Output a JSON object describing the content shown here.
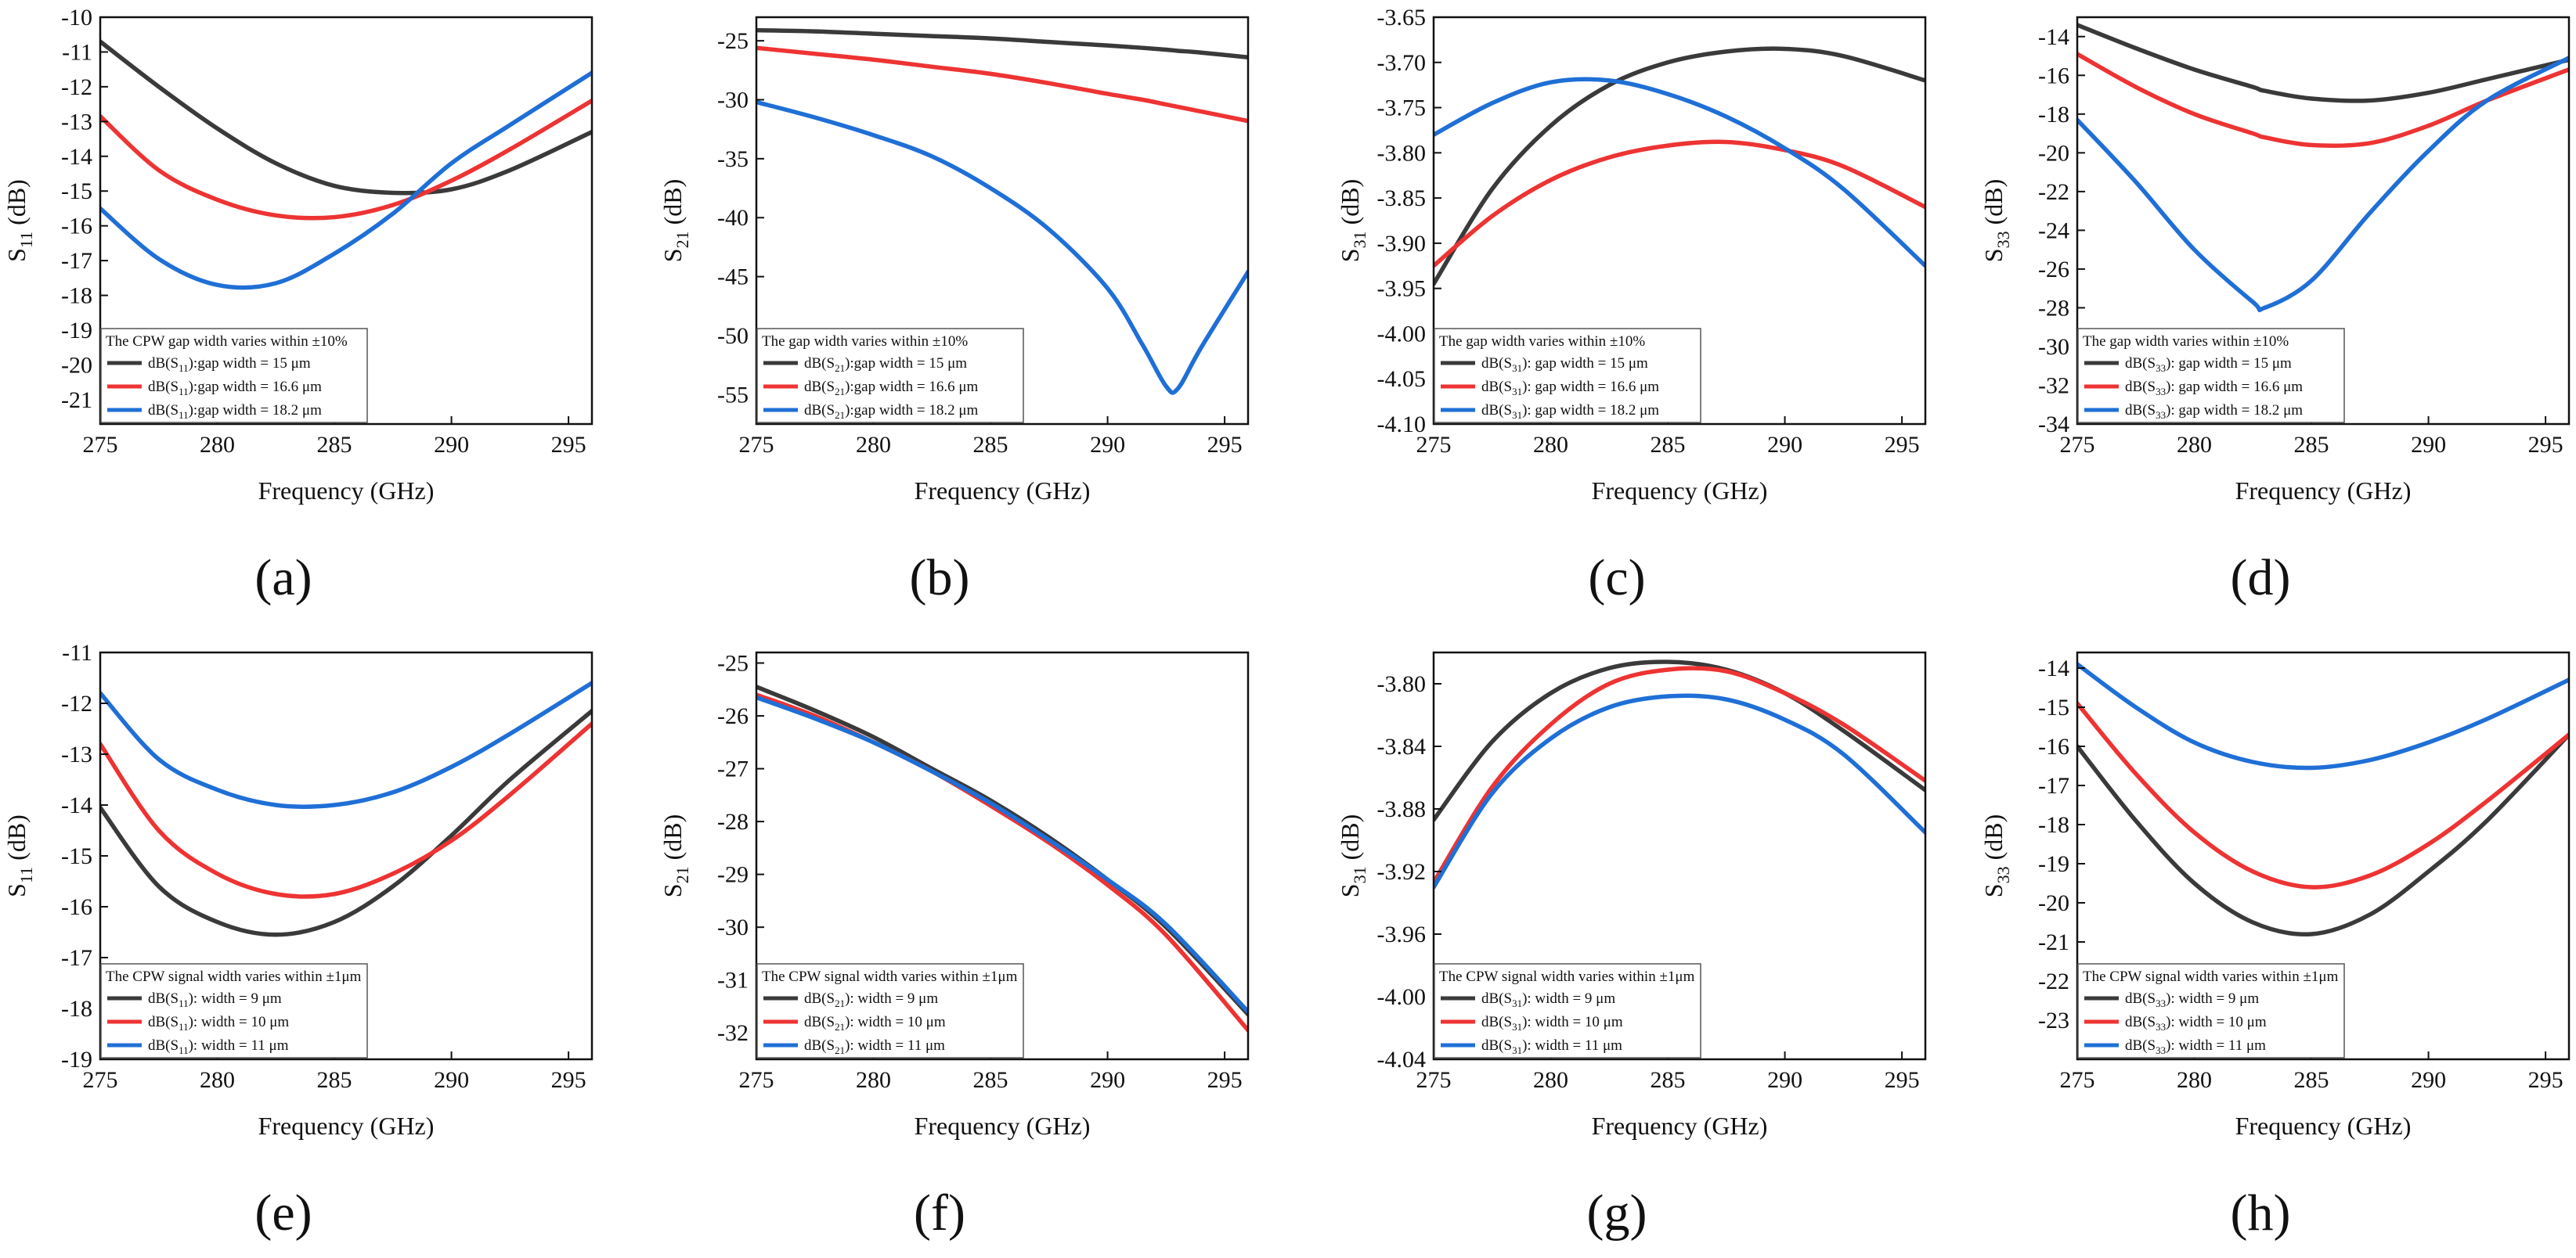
{
  "colors": {
    "black": "#3a3a3a",
    "red": "#ee3333",
    "blue": "#1f6fd6"
  },
  "chart_data": [
    {
      "id": "a",
      "type": "line",
      "panel_label": "(a)",
      "xlabel": "Frequency (GHz)",
      "ylabel_base": "S",
      "ylabel_sub": "11",
      "ylabel_unit": " (dB)",
      "xlim": [
        275,
        296
      ],
      "ylim": [
        -21.7,
        -10
      ],
      "xticks": [
        275,
        280,
        285,
        290,
        295
      ],
      "xtick_labels": [
        "275",
        "280",
        "285",
        "290",
        "295"
      ],
      "yticks": [
        -10,
        -11,
        -12,
        -13,
        -14,
        -15,
        -16,
        -17,
        -18,
        -19,
        -20,
        -21
      ],
      "ytick_labels": [
        "-10",
        "-11",
        "-12",
        "-13",
        "-14",
        "-15",
        "-16",
        "-17",
        "-18",
        "-19",
        "-20",
        "-21"
      ],
      "x": [
        275,
        277.5,
        280,
        282.5,
        285,
        287.5,
        290,
        292.5,
        296
      ],
      "legend_title": "The CPW gap width varies within ±10%",
      "series": [
        {
          "name": "dB(S11):gap width = 15 μm",
          "color": "black",
          "values": [
            -10.7,
            -12.0,
            -13.2,
            -14.2,
            -14.85,
            -15.05,
            -14.95,
            -14.4,
            -13.3
          ]
        },
        {
          "name": "dB(S11):gap width = 16.6 μm",
          "color": "red",
          "values": [
            -12.85,
            -14.4,
            -15.25,
            -15.7,
            -15.75,
            -15.4,
            -14.7,
            -13.8,
            -12.4
          ]
        },
        {
          "name": "dB(S11):gap width = 18.2 μm",
          "color": "blue",
          "values": [
            -15.5,
            -16.95,
            -17.7,
            -17.65,
            -16.8,
            -15.65,
            -14.2,
            -13.1,
            -11.6
          ]
        }
      ],
      "legend_entries": [
        {
          "pre": "dB(S",
          "sub": "11",
          "post": "):gap width = 15 μm"
        },
        {
          "pre": "dB(S",
          "sub": "11",
          "post": "):gap width = 16.6 μm"
        },
        {
          "pre": "dB(S",
          "sub": "11",
          "post": "):gap width = 18.2 μm"
        }
      ]
    },
    {
      "id": "b",
      "type": "line",
      "panel_label": "(b)",
      "xlabel": "Frequency (GHz)",
      "ylabel_base": "S",
      "ylabel_sub": "21",
      "ylabel_unit": " (dB)",
      "xlim": [
        275,
        296
      ],
      "ylim": [
        -57.5,
        -23
      ],
      "xticks": [
        275,
        280,
        285,
        290,
        295
      ],
      "xtick_labels": [
        "275",
        "280",
        "285",
        "290",
        "295"
      ],
      "yticks": [
        -25,
        -30,
        -35,
        -40,
        -45,
        -50,
        -55
      ],
      "ytick_labels": [
        "-25",
        "-30",
        "-35",
        "-40",
        "-45",
        "-50",
        "-55"
      ],
      "x": [
        275,
        277.5,
        280,
        282.5,
        285,
        287.5,
        290,
        291.5,
        292.5,
        293,
        294,
        296
      ],
      "legend_title": "The gap width varies within ±10%",
      "series": [
        {
          "name": "dB(S21):gap width = 15 μm",
          "color": "black",
          "values": [
            -24.1,
            -24.2,
            -24.4,
            -24.6,
            -24.8,
            -25.1,
            -25.4,
            -25.6,
            -25.75,
            -25.85,
            -26.0,
            -26.4
          ]
        },
        {
          "name": "dB(S21):gap width = 16.6 μm",
          "color": "red",
          "values": [
            -25.6,
            -26.1,
            -26.6,
            -27.2,
            -27.8,
            -28.6,
            -29.5,
            -30.0,
            -30.4,
            -30.6,
            -31.0,
            -31.8
          ]
        },
        {
          "name": "dB(S21):gap width = 18.2 μm",
          "color": "blue",
          "values": [
            -30.2,
            -31.5,
            -33.0,
            -34.8,
            -37.5,
            -41.0,
            -46.0,
            -50.8,
            -54.3,
            -54.5,
            -51.0,
            -44.6
          ]
        }
      ],
      "legend_entries": [
        {
          "pre": "dB(S",
          "sub": "21",
          "post": "):gap width = 15 μm"
        },
        {
          "pre": "dB(S",
          "sub": "21",
          "post": "):gap width = 16.6 μm"
        },
        {
          "pre": "dB(S",
          "sub": "21",
          "post": "):gap width = 18.2 μm"
        }
      ]
    },
    {
      "id": "c",
      "type": "line",
      "panel_label": "(c)",
      "xlabel": "Frequency (GHz)",
      "ylabel_base": "S",
      "ylabel_sub": "31",
      "ylabel_unit": " (dB)",
      "xlim": [
        275,
        296
      ],
      "ylim": [
        -4.1,
        -3.65
      ],
      "xticks": [
        275,
        280,
        285,
        290,
        295
      ],
      "xtick_labels": [
        "275",
        "280",
        "285",
        "290",
        "295"
      ],
      "yticks": [
        -3.65,
        -3.7,
        -3.75,
        -3.8,
        -3.85,
        -3.9,
        -3.95,
        -4.0,
        -4.05,
        -4.1
      ],
      "ytick_labels": [
        "-3.65",
        "-3.70",
        "-3.75",
        "-3.80",
        "-3.85",
        "-3.90",
        "-3.95",
        "-4.00",
        "-4.05",
        "-4.10"
      ],
      "x": [
        275,
        277.5,
        280,
        282.5,
        285,
        287.5,
        290,
        292.5,
        296
      ],
      "legend_title": "The gap width varies within ±10%",
      "series": [
        {
          "name": "dB(S31): gap width = 15 μm",
          "color": "black",
          "values": [
            -3.945,
            -3.84,
            -3.77,
            -3.725,
            -3.7,
            -3.688,
            -3.685,
            -3.693,
            -3.72
          ]
        },
        {
          "name": "dB(S31): gap width = 16.6 μm",
          "color": "red",
          "values": [
            -3.925,
            -3.87,
            -3.83,
            -3.805,
            -3.792,
            -3.788,
            -3.797,
            -3.815,
            -3.86
          ]
        },
        {
          "name": "dB(S31): gap width = 18.2 μm",
          "color": "blue",
          "values": [
            -3.78,
            -3.745,
            -3.722,
            -3.72,
            -3.735,
            -3.76,
            -3.795,
            -3.84,
            -3.925
          ]
        }
      ],
      "legend_entries": [
        {
          "pre": "dB(S",
          "sub": "31",
          "post": "): gap width = 15 μm"
        },
        {
          "pre": "dB(S",
          "sub": "31",
          "post": "): gap width = 16.6 μm"
        },
        {
          "pre": "dB(S",
          "sub": "31",
          "post": "): gap width = 18.2 μm"
        }
      ]
    },
    {
      "id": "d",
      "type": "line",
      "panel_label": "(d)",
      "xlabel": "Frequency (GHz)",
      "ylabel_base": "S",
      "ylabel_sub": "33",
      "ylabel_unit": " (dB)",
      "xlim": [
        275,
        296
      ],
      "ylim": [
        -34,
        -13
      ],
      "xticks": [
        275,
        280,
        285,
        290,
        295
      ],
      "xtick_labels": [
        "275",
        "280",
        "285",
        "290",
        "295"
      ],
      "yticks": [
        -14,
        -16,
        -18,
        -20,
        -22,
        -24,
        -26,
        -28,
        -30,
        -32,
        -34
      ],
      "ytick_labels": [
        "-14",
        "-16",
        "-18",
        "-20",
        "-22",
        "-24",
        "-26",
        "-28",
        "-30",
        "-32",
        "-34"
      ],
      "x": [
        275,
        277.5,
        280,
        282.5,
        283,
        285,
        287.5,
        290,
        292.5,
        296
      ],
      "legend_title": "The gap width varies within ±10%",
      "series": [
        {
          "name": "dB(S33): gap width = 15 μm",
          "color": "black",
          "values": [
            -13.4,
            -14.6,
            -15.7,
            -16.6,
            -16.8,
            -17.2,
            -17.3,
            -16.9,
            -16.2,
            -15.2
          ]
        },
        {
          "name": "dB(S33): gap width = 16.6 μm",
          "color": "red",
          "values": [
            -14.9,
            -16.6,
            -18.0,
            -19.0,
            -19.2,
            -19.6,
            -19.5,
            -18.6,
            -17.3,
            -15.7
          ]
        },
        {
          "name": "dB(S33): gap width = 18.2 μm",
          "color": "blue",
          "values": [
            -18.3,
            -21.5,
            -25.0,
            -27.7,
            -28.0,
            -26.6,
            -23.1,
            -19.9,
            -17.3,
            -15.1
          ]
        }
      ],
      "legend_entries": [
        {
          "pre": "dB(S",
          "sub": "33",
          "post": "): gap width = 15 μm"
        },
        {
          "pre": "dB(S",
          "sub": "33",
          "post": "): gap width = 16.6 μm"
        },
        {
          "pre": "dB(S",
          "sub": "33",
          "post": "): gap width = 18.2 μm"
        }
      ]
    },
    {
      "id": "e",
      "type": "line",
      "panel_label": "(e)",
      "xlabel": "Frequency (GHz)",
      "ylabel_base": "S",
      "ylabel_sub": "11",
      "ylabel_unit": " (dB)",
      "xlim": [
        275,
        296
      ],
      "ylim": [
        -19,
        -11
      ],
      "xticks": [
        275,
        280,
        285,
        290,
        295
      ],
      "xtick_labels": [
        "275",
        "280",
        "285",
        "290",
        "295"
      ],
      "yticks": [
        -11,
        -12,
        -13,
        -14,
        -15,
        -16,
        -17,
        -18,
        -19
      ],
      "ytick_labels": [
        "-11",
        "-12",
        "-13",
        "-14",
        "-15",
        "-16",
        "-17",
        "-18",
        "-19"
      ],
      "x": [
        275,
        277.5,
        280,
        282.5,
        285,
        287.5,
        290,
        292.5,
        296
      ],
      "legend_title": "The CPW signal width varies within ±1μm",
      "series": [
        {
          "name": "dB(S11): width = 9 μm",
          "color": "black",
          "values": [
            -14.05,
            -15.6,
            -16.3,
            -16.55,
            -16.3,
            -15.6,
            -14.6,
            -13.5,
            -12.15
          ]
        },
        {
          "name": "dB(S11): width = 10 μm",
          "color": "red",
          "values": [
            -12.8,
            -14.5,
            -15.35,
            -15.75,
            -15.75,
            -15.35,
            -14.7,
            -13.8,
            -12.4
          ]
        },
        {
          "name": "dB(S11): width = 11 μm",
          "color": "blue",
          "values": [
            -11.8,
            -13.1,
            -13.7,
            -14.0,
            -14.0,
            -13.75,
            -13.25,
            -12.6,
            -11.6
          ]
        }
      ],
      "legend_entries": [
        {
          "pre": "dB(S",
          "sub": "11",
          "post": "): width = 9 μm"
        },
        {
          "pre": "dB(S",
          "sub": "11",
          "post": "): width = 10 μm"
        },
        {
          "pre": "dB(S",
          "sub": "11",
          "post": "): width = 11 μm"
        }
      ]
    },
    {
      "id": "f",
      "type": "line",
      "panel_label": "(f)",
      "xlabel": "Frequency (GHz)",
      "ylabel_base": "S",
      "ylabel_sub": "21",
      "ylabel_unit": " (dB)",
      "xlim": [
        275,
        296
      ],
      "ylim": [
        -32.5,
        -24.8
      ],
      "xticks": [
        275,
        280,
        285,
        290,
        295
      ],
      "xtick_labels": [
        "275",
        "280",
        "285",
        "290",
        "295"
      ],
      "yticks": [
        -25,
        -26,
        -27,
        -28,
        -29,
        -30,
        -31,
        -32
      ],
      "ytick_labels": [
        "-25",
        "-26",
        "-27",
        "-28",
        "-29",
        "-30",
        "-31",
        "-32"
      ],
      "x": [
        275,
        277.5,
        280,
        282.5,
        285,
        287.5,
        290,
        292.5,
        296
      ],
      "legend_title": "The CPW signal width varies within ±1μm",
      "series": [
        {
          "name": "dB(S21): width = 9 μm",
          "color": "black",
          "values": [
            -25.45,
            -25.9,
            -26.4,
            -27.0,
            -27.6,
            -28.3,
            -29.1,
            -30.0,
            -31.65
          ]
        },
        {
          "name": "dB(S21): width = 10 μm",
          "color": "red",
          "values": [
            -25.6,
            -26.0,
            -26.5,
            -27.05,
            -27.7,
            -28.4,
            -29.2,
            -30.15,
            -31.95
          ]
        },
        {
          "name": "dB(S21): width = 11 μm",
          "color": "blue",
          "values": [
            -25.65,
            -26.05,
            -26.5,
            -27.05,
            -27.65,
            -28.35,
            -29.1,
            -29.95,
            -31.6
          ]
        }
      ],
      "legend_entries": [
        {
          "pre": "dB(S",
          "sub": "21",
          "post": "): width = 9 μm"
        },
        {
          "pre": "dB(S",
          "sub": "21",
          "post": "): width = 10 μm"
        },
        {
          "pre": "dB(S",
          "sub": "21",
          "post": "): width = 11 μm"
        }
      ]
    },
    {
      "id": "g",
      "type": "line",
      "panel_label": "(g)",
      "xlabel": "Frequency (GHz)",
      "ylabel_base": "S",
      "ylabel_sub": "31",
      "ylabel_unit": " (dB)",
      "xlim": [
        275,
        296
      ],
      "ylim": [
        -4.04,
        -3.78
      ],
      "xticks": [
        275,
        280,
        285,
        290,
        295
      ],
      "xtick_labels": [
        "275",
        "280",
        "285",
        "290",
        "295"
      ],
      "yticks": [
        -3.8,
        -3.84,
        -3.88,
        -3.92,
        -3.96,
        -4.0,
        -4.04
      ],
      "ytick_labels": [
        "-3.80",
        "-3.84",
        "-3.88",
        "-3.92",
        "-3.96",
        "-4.00",
        "-4.04"
      ],
      "x": [
        275,
        277.5,
        280,
        282.5,
        285,
        287.5,
        290,
        292.5,
        296
      ],
      "legend_title": "The CPW signal width varies within ±1μm",
      "series": [
        {
          "name": "dB(S31): width = 9 μm",
          "color": "black",
          "values": [
            -3.887,
            -3.837,
            -3.806,
            -3.79,
            -3.786,
            -3.791,
            -3.806,
            -3.83,
            -3.868
          ]
        },
        {
          "name": "dB(S31): width = 10 μm",
          "color": "red",
          "values": [
            -3.927,
            -3.866,
            -3.826,
            -3.8,
            -3.791,
            -3.792,
            -3.806,
            -3.826,
            -3.862
          ]
        },
        {
          "name": "dB(S31): width = 11 μm",
          "color": "blue",
          "values": [
            -3.93,
            -3.87,
            -3.835,
            -3.815,
            -3.808,
            -3.81,
            -3.823,
            -3.845,
            -3.895
          ]
        }
      ],
      "legend_entries": [
        {
          "pre": "dB(S",
          "sub": "31",
          "post": "): width = 9 μm"
        },
        {
          "pre": "dB(S",
          "sub": "31",
          "post": "): width = 10 μm"
        },
        {
          "pre": "dB(S",
          "sub": "31",
          "post": "): width = 11 μm"
        }
      ]
    },
    {
      "id": "h",
      "type": "line",
      "panel_label": "(h)",
      "xlabel": "Frequency (GHz)",
      "ylabel_base": "S",
      "ylabel_sub": "33",
      "ylabel_unit": " (dB)",
      "xlim": [
        275,
        296
      ],
      "ylim": [
        -24,
        -13.6
      ],
      "xticks": [
        275,
        280,
        285,
        290,
        295
      ],
      "xtick_labels": [
        "275",
        "280",
        "285",
        "290",
        "295"
      ],
      "yticks": [
        -14,
        -15,
        -16,
        -17,
        -18,
        -19,
        -20,
        -21,
        -22,
        -23
      ],
      "ytick_labels": [
        "-14",
        "-15",
        "-16",
        "-17",
        "-18",
        "-19",
        "-20",
        "-21",
        "-22",
        "-23"
      ],
      "x": [
        275,
        277.5,
        280,
        282.5,
        285,
        287.5,
        290,
        292.5,
        296
      ],
      "legend_title": "The CPW signal width varies within ±1μm",
      "series": [
        {
          "name": "dB(S33): width = 9 μm",
          "color": "black",
          "values": [
            -16.0,
            -17.9,
            -19.5,
            -20.5,
            -20.8,
            -20.3,
            -19.2,
            -17.9,
            -15.7
          ]
        },
        {
          "name": "dB(S33): width = 10 μm",
          "color": "red",
          "values": [
            -14.9,
            -16.7,
            -18.2,
            -19.2,
            -19.6,
            -19.3,
            -18.5,
            -17.4,
            -15.7
          ]
        },
        {
          "name": "dB(S33): width = 11 μm",
          "color": "blue",
          "values": [
            -13.9,
            -15.0,
            -15.9,
            -16.4,
            -16.55,
            -16.35,
            -15.9,
            -15.3,
            -14.3
          ]
        }
      ],
      "legend_entries": [
        {
          "pre": "dB(S",
          "sub": "33",
          "post": "): width = 9 μm"
        },
        {
          "pre": "dB(S",
          "sub": "33",
          "post": "): width = 10 μm"
        },
        {
          "pre": "dB(S",
          "sub": "33",
          "post": "): width = 11 μm"
        }
      ]
    }
  ]
}
